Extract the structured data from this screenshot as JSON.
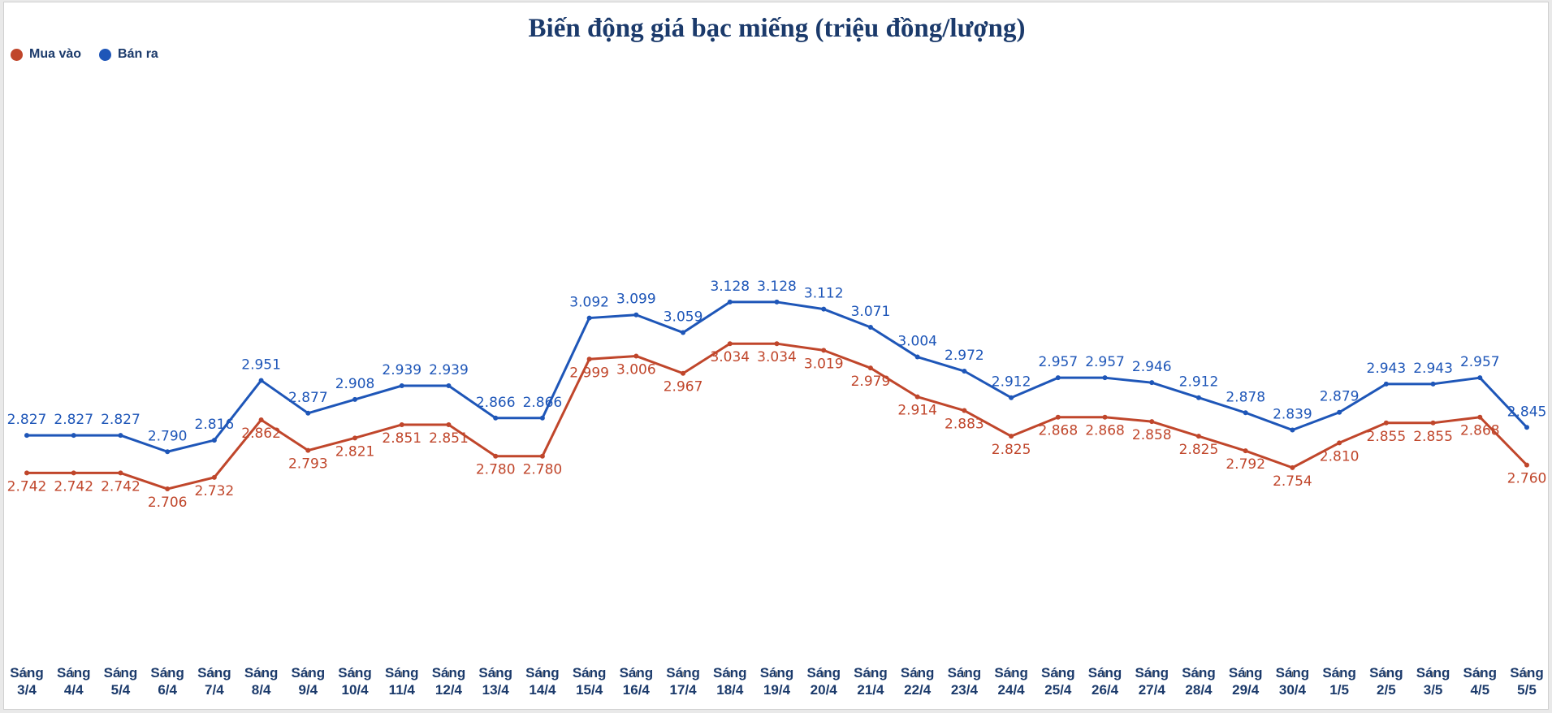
{
  "chart_data": {
    "type": "line",
    "title": "Biến động giá bạc miếng (triệu đồng/lượng)",
    "categories": [
      [
        "Sáng",
        "3/4"
      ],
      [
        "Sáng",
        "4/4"
      ],
      [
        "Sáng",
        "5/4"
      ],
      [
        "Sáng",
        "6/4"
      ],
      [
        "Sáng",
        "7/4"
      ],
      [
        "Sáng",
        "8/4"
      ],
      [
        "Sáng",
        "9/4"
      ],
      [
        "Sáng",
        "10/4"
      ],
      [
        "Sáng",
        "11/4"
      ],
      [
        "Sáng",
        "12/4"
      ],
      [
        "Sáng",
        "13/4"
      ],
      [
        "Sáng",
        "14/4"
      ],
      [
        "Sáng",
        "15/4"
      ],
      [
        "Sáng",
        "16/4"
      ],
      [
        "Sáng",
        "17/4"
      ],
      [
        "Sáng",
        "18/4"
      ],
      [
        "Sáng",
        "19/4"
      ],
      [
        "Sáng",
        "20/4"
      ],
      [
        "Sáng",
        "21/4"
      ],
      [
        "Sáng",
        "22/4"
      ],
      [
        "Sáng",
        "23/4"
      ],
      [
        "Sáng",
        "24/4"
      ],
      [
        "Sáng",
        "25/4"
      ],
      [
        "Sáng",
        "26/4"
      ],
      [
        "Sáng",
        "27/4"
      ],
      [
        "Sáng",
        "28/4"
      ],
      [
        "Sáng",
        "29/4"
      ],
      [
        "Sáng",
        "30/4"
      ],
      [
        "Sáng",
        "1/5"
      ],
      [
        "Sáng",
        "2/5"
      ],
      [
        "Sáng",
        "3/5"
      ],
      [
        "Sáng",
        "4/5"
      ],
      [
        "Sáng",
        "5/5"
      ]
    ],
    "series": [
      {
        "name": "Mua vào",
        "color": "#c0462b",
        "label_position": "below",
        "values": [
          2.742,
          2.742,
          2.742,
          2.706,
          2.732,
          2.862,
          2.793,
          2.821,
          2.851,
          2.851,
          2.78,
          2.78,
          2.999,
          3.006,
          2.967,
          3.034,
          3.034,
          3.019,
          2.979,
          2.914,
          2.883,
          2.825,
          2.868,
          2.868,
          2.858,
          2.825,
          2.792,
          2.754,
          2.81,
          2.855,
          2.855,
          2.868,
          2.76
        ],
        "labels": [
          "2.742",
          "2.742",
          "2.742",
          "2.706",
          "2.732",
          "2.862",
          "2.793",
          "2.821",
          "2.851",
          "2.851",
          "2.780",
          "2.780",
          "2.999",
          "3.006",
          "2.967",
          "3.034",
          "3.034",
          "3.019",
          "2.979",
          "2.914",
          "2.883",
          "2.825",
          "2.868",
          "2.868",
          "2.858",
          "2.825",
          "2.792",
          "2.754",
          "2.810",
          "2.855",
          "2.855",
          "2.868",
          "2.760"
        ]
      },
      {
        "name": "Bán ra",
        "color": "#1e56b8",
        "label_position": "above",
        "values": [
          2.827,
          2.827,
          2.827,
          2.79,
          2.816,
          2.951,
          2.877,
          2.908,
          2.939,
          2.939,
          2.866,
          2.866,
          3.092,
          3.099,
          3.059,
          3.128,
          3.128,
          3.112,
          3.071,
          3.004,
          2.972,
          2.912,
          2.957,
          2.957,
          2.946,
          2.912,
          2.878,
          2.839,
          2.879,
          2.943,
          2.943,
          2.957,
          2.845
        ],
        "labels": [
          "2.827",
          "2.827",
          "2.827",
          "2.790",
          "2.816",
          "2.951",
          "2.877",
          "2.908",
          "2.939",
          "2.939",
          "2.866",
          "2.866",
          "3.092",
          "3.099",
          "3.059",
          "3.128",
          "3.128",
          "3.112",
          "3.071",
          "3.004",
          "2.972",
          "2.912",
          "2.957",
          "2.957",
          "2.946",
          "2.912",
          "2.878",
          "2.839",
          "2.879",
          "2.943",
          "2.943",
          "2.957",
          "2.845"
        ]
      }
    ],
    "ylim": [
      2.2,
      3.7
    ],
    "grid": false,
    "legend_position": "top-left"
  }
}
